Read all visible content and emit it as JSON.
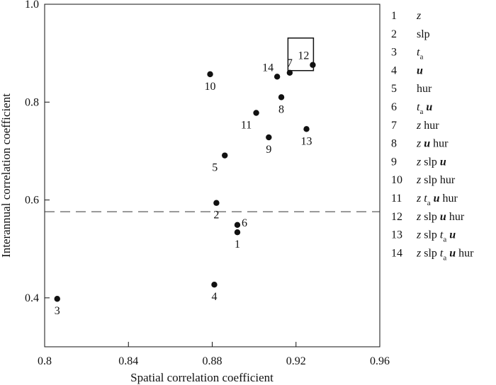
{
  "chart_data": {
    "type": "scatter",
    "xlabel": "Spatial correlation coefficient",
    "ylabel": "Interannual correlation coefficient",
    "xlim": [
      0.8,
      0.96
    ],
    "ylim": [
      0.3,
      1.0
    ],
    "xticks": [
      0.8,
      0.84,
      0.88,
      0.92,
      0.96
    ],
    "yticks": [
      0.4,
      0.6,
      0.8,
      1.0
    ],
    "xtick_labels": [
      "0.8",
      "0.84",
      "0.88",
      "0.92",
      "0.96"
    ],
    "ytick_labels": [
      "0.4",
      "0.6",
      "0.8",
      "1.0"
    ],
    "reference_line": {
      "y": 0.576,
      "style": "dashed"
    },
    "highlight_point": "12",
    "points": [
      {
        "id": "1",
        "x": 0.892,
        "y": 0.534,
        "label_pos": "below"
      },
      {
        "id": "2",
        "x": 0.882,
        "y": 0.594,
        "label_pos": "below"
      },
      {
        "id": "3",
        "x": 0.806,
        "y": 0.398,
        "label_pos": "below"
      },
      {
        "id": "4",
        "x": 0.881,
        "y": 0.427,
        "label_pos": "below"
      },
      {
        "id": "5",
        "x": 0.886,
        "y": 0.691,
        "label_pos": "below-left"
      },
      {
        "id": "6",
        "x": 0.892,
        "y": 0.549,
        "label_pos": "right"
      },
      {
        "id": "7",
        "x": 0.917,
        "y": 0.86,
        "label_pos": "above"
      },
      {
        "id": "8",
        "x": 0.913,
        "y": 0.81,
        "label_pos": "below"
      },
      {
        "id": "9",
        "x": 0.907,
        "y": 0.728,
        "label_pos": "below"
      },
      {
        "id": "10",
        "x": 0.879,
        "y": 0.857,
        "label_pos": "below"
      },
      {
        "id": "11",
        "x": 0.901,
        "y": 0.778,
        "label_pos": "below-left"
      },
      {
        "id": "12",
        "x": 0.928,
        "y": 0.876,
        "label_pos": "above-left"
      },
      {
        "id": "13",
        "x": 0.925,
        "y": 0.745,
        "label_pos": "below"
      },
      {
        "id": "14",
        "x": 0.911,
        "y": 0.852,
        "label_pos": "above-left"
      }
    ],
    "legend": [
      {
        "num": "1",
        "parts": [
          {
            "t": "z",
            "s": "it"
          }
        ]
      },
      {
        "num": "2",
        "parts": [
          {
            "t": "slp",
            "s": "n"
          }
        ]
      },
      {
        "num": "3",
        "parts": [
          {
            "t": "t",
            "s": "it"
          },
          {
            "t": "a",
            "s": "sub"
          }
        ]
      },
      {
        "num": "4",
        "parts": [
          {
            "t": "u",
            "s": "bi"
          }
        ]
      },
      {
        "num": "5",
        "parts": [
          {
            "t": "hur",
            "s": "n"
          }
        ]
      },
      {
        "num": "6",
        "parts": [
          {
            "t": "t",
            "s": "it"
          },
          {
            "t": "a",
            "s": "sub"
          },
          {
            "t": " ",
            "s": "n"
          },
          {
            "t": "u",
            "s": "bi"
          }
        ]
      },
      {
        "num": "7",
        "parts": [
          {
            "t": "z",
            "s": "it"
          },
          {
            "t": " hur",
            "s": "n"
          }
        ]
      },
      {
        "num": "8",
        "parts": [
          {
            "t": "z",
            "s": "it"
          },
          {
            "t": " ",
            "s": "n"
          },
          {
            "t": "u",
            "s": "bi"
          },
          {
            "t": " hur",
            "s": "n"
          }
        ]
      },
      {
        "num": "9",
        "parts": [
          {
            "t": "z",
            "s": "it"
          },
          {
            "t": " slp ",
            "s": "n"
          },
          {
            "t": "u",
            "s": "bi"
          }
        ]
      },
      {
        "num": "10",
        "parts": [
          {
            "t": "z",
            "s": "it"
          },
          {
            "t": " slp hur",
            "s": "n"
          }
        ]
      },
      {
        "num": "11",
        "parts": [
          {
            "t": "z",
            "s": "it"
          },
          {
            "t": " ",
            "s": "n"
          },
          {
            "t": "t",
            "s": "it"
          },
          {
            "t": "a",
            "s": "sub"
          },
          {
            "t": " ",
            "s": "n"
          },
          {
            "t": "u",
            "s": "bi"
          },
          {
            "t": " hur",
            "s": "n"
          }
        ]
      },
      {
        "num": "12",
        "parts": [
          {
            "t": "z",
            "s": "it"
          },
          {
            "t": " slp ",
            "s": "n"
          },
          {
            "t": "u",
            "s": "bi"
          },
          {
            "t": " hur",
            "s": "n"
          }
        ]
      },
      {
        "num": "13",
        "parts": [
          {
            "t": "z",
            "s": "it"
          },
          {
            "t": " slp ",
            "s": "n"
          },
          {
            "t": "t",
            "s": "it"
          },
          {
            "t": "a",
            "s": "sub"
          },
          {
            "t": " ",
            "s": "n"
          },
          {
            "t": "u",
            "s": "bi"
          }
        ]
      },
      {
        "num": "14",
        "parts": [
          {
            "t": "z",
            "s": "it"
          },
          {
            "t": " slp ",
            "s": "n"
          },
          {
            "t": "t",
            "s": "it"
          },
          {
            "t": "a",
            "s": "sub"
          },
          {
            "t": " ",
            "s": "n"
          },
          {
            "t": "u",
            "s": "bi"
          },
          {
            "t": " hur",
            "s": "n"
          }
        ]
      }
    ]
  }
}
